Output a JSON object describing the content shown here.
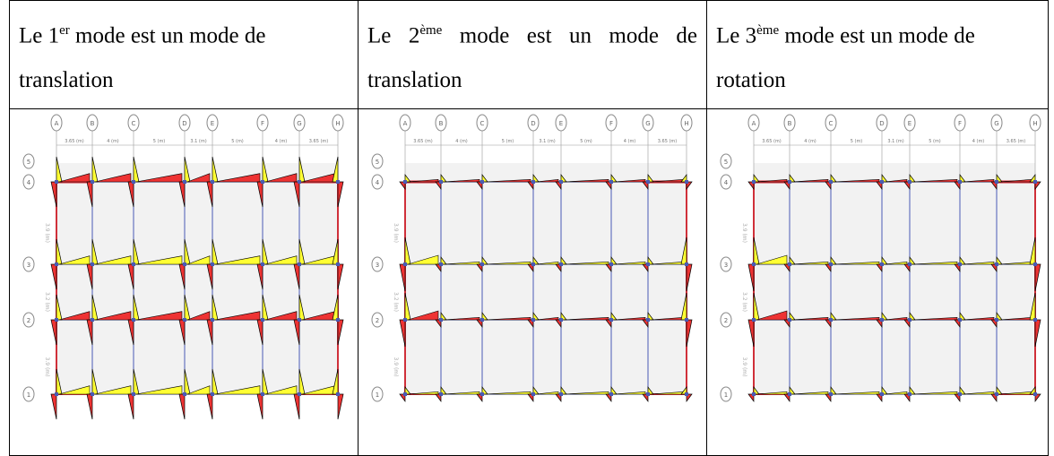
{
  "header_cells": [
    {
      "before": "Le 1",
      "sup": "er",
      "after": " mode est un mode de translation"
    },
    {
      "before": "Le 2",
      "sup": "ème",
      "after": " mode est un mode de translation"
    },
    {
      "before": "Le 3",
      "sup": "ème",
      "after": " mode est un mode de rotation"
    }
  ],
  "grid": {
    "columns": [
      "A",
      "B",
      "C",
      "D",
      "E",
      "F",
      "G",
      "H"
    ],
    "rows": [
      "5",
      "4",
      "3",
      "2",
      "1"
    ],
    "spans": [
      "3.65 (m)",
      "4 (m)",
      "5 (m)",
      "3.1 (m)",
      "5 (m)",
      "4 (m)",
      "3.65 (m)"
    ],
    "heights": [
      "3.9 (m)",
      "3.2 (m)",
      "3.9 (m)"
    ]
  }
}
